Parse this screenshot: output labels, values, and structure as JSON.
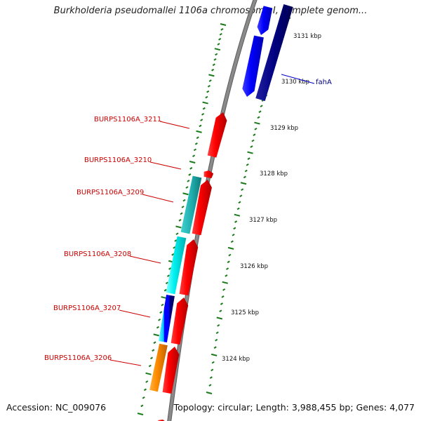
{
  "title": "Burkholderia pseudomallei 1106a chromosome I, complete genom...",
  "accession": "Accession: NC_009076",
  "topology": "Topology: circular; Length: 3,988,455 bp; Genes: 4,077",
  "colors": {
    "backbone": "#8a8a8a",
    "tick": "#1a7a1a",
    "locus_label": "#cc0000",
    "gene_label": "#000080",
    "red_gene": "#ff0000",
    "blue_gene": "#0000ff",
    "navy_gene": "#000080",
    "cyan_gene": "#00e0e0",
    "teal_gene": "#20b0b0",
    "orange_gene": "#ff8c00"
  },
  "kbp_labels": [
    "3131 kbp",
    "3130 kbp",
    "3129 kbp",
    "3128 kbp",
    "3127 kbp",
    "3126 kbp",
    "3125 kbp",
    "3124 kbp"
  ],
  "locus_labels": [
    "BURPS1106A_3211",
    "BURPS1106A_3210",
    "BURPS1106A_3209",
    "BURPS1106A_3208",
    "BURPS1106A_3207",
    "BURPS1106A_3206"
  ],
  "gene_names": [
    "fahA"
  ]
}
